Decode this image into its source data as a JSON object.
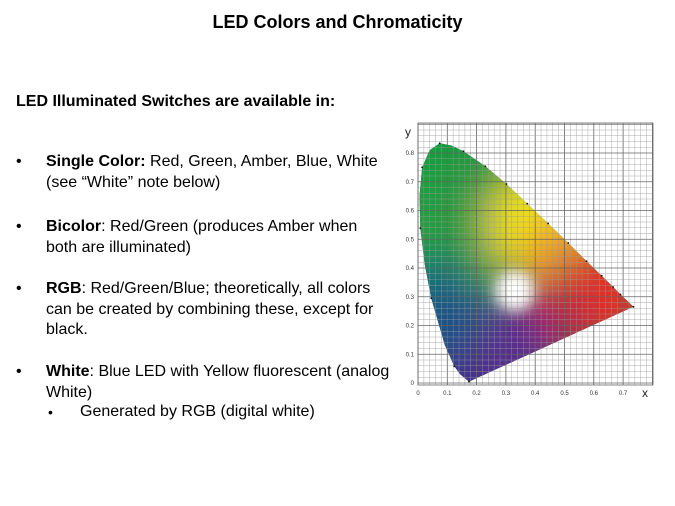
{
  "title": "LED Colors and Chromaticity",
  "heading": "LED Illuminated Switches are available in:",
  "bullets": [
    {
      "bold": "Single Color:",
      "text": " Red, Green, Amber, Blue, White (see “White” note below)"
    },
    {
      "bold": "Bicolor",
      "text": ": Red/Green (produces Amber when both are illuminated)"
    },
    {
      "bold": "RGB",
      "text": ": Red/Green/Blue; theoretically, all colors can be created by combining these, except for black."
    },
    {
      "bold": "White",
      "text": ": Blue LED with Yellow fluorescent (analog White)"
    }
  ],
  "sub_bullet": "Generated by RGB (digital white)",
  "bullet_glyph": "•",
  "chart": {
    "xlabel": "x",
    "ylabel": "y",
    "x_ticks": [
      "0",
      "0.1",
      "0.2",
      "0.3",
      "0.4",
      "0.5",
      "0.6",
      "0.7"
    ],
    "y_ticks": [
      "0",
      "0.1",
      "0.2",
      "0.3",
      "0.4",
      "0.5",
      "0.6",
      "0.7",
      "0.8"
    ],
    "xlim": [
      0,
      0.8
    ],
    "ylim": [
      0,
      0.9
    ],
    "grid": true,
    "type": "CIE 1931 chromaticity diagram"
  }
}
